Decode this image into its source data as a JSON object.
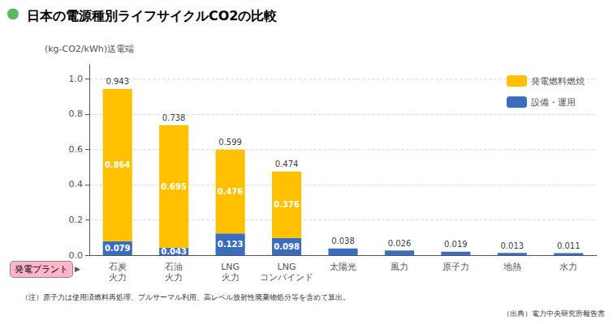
{
  "chart_data": {
    "type": "bar",
    "title": "日本の電源種別ライフサイクルCO2の比較",
    "ylabel": "(kg-CO2/kWh)送電端",
    "categories": [
      "石炭\n火力",
      "石油\n火力",
      "LNG\n火力",
      "LNG\nコンバインド",
      "太陽光",
      "風力",
      "原子力",
      "地熱",
      "水力"
    ],
    "series": [
      {
        "name": "設備・運用",
        "color": "#3B6DBE",
        "values": [
          0.079,
          0.043,
          0.123,
          0.098,
          0.038,
          0.026,
          0.019,
          0.013,
          0.011
        ],
        "value_labels": [
          "0.079",
          "0.043",
          "0.123",
          "0.098",
          null,
          null,
          null,
          null,
          null
        ]
      },
      {
        "name": "発電燃料燃焼",
        "color": "#FFC000",
        "values": [
          0.864,
          0.695,
          0.476,
          0.376,
          0.0,
          0.0,
          0.0,
          0.0,
          0.0
        ],
        "value_labels": [
          "0.864",
          "0.695",
          "0.476",
          "0.376",
          null,
          null,
          null,
          null,
          null
        ]
      }
    ],
    "totals": [
      0.943,
      0.738,
      0.599,
      0.474,
      0.038,
      0.026,
      0.019,
      0.013,
      0.011
    ],
    "stacked": true,
    "data_labels": true,
    "ylim": [
      0,
      1.08
    ],
    "yticks": [
      {
        "value": 0,
        "label": "0.0"
      },
      0.2,
      0.4,
      0.6,
      0.8,
      {
        "value": 1,
        "label": "1.0"
      }
    ],
    "grid": true,
    "legend": "upper right",
    "annotations": [
      {
        "text": "●",
        "color": "#5CB85C"
      },
      {
        "text": "発電プラント",
        "color": "#FFB6C8"
      },
      {
        "text": "▶"
      },
      {
        "text": "（注）原子力は使用済燃料再処理、プルサーマル利用、高レベル放射性廃棄物処分等を含めて算出。"
      },
      {
        "text": "（出典）電力中央研究所報告書"
      }
    ]
  }
}
